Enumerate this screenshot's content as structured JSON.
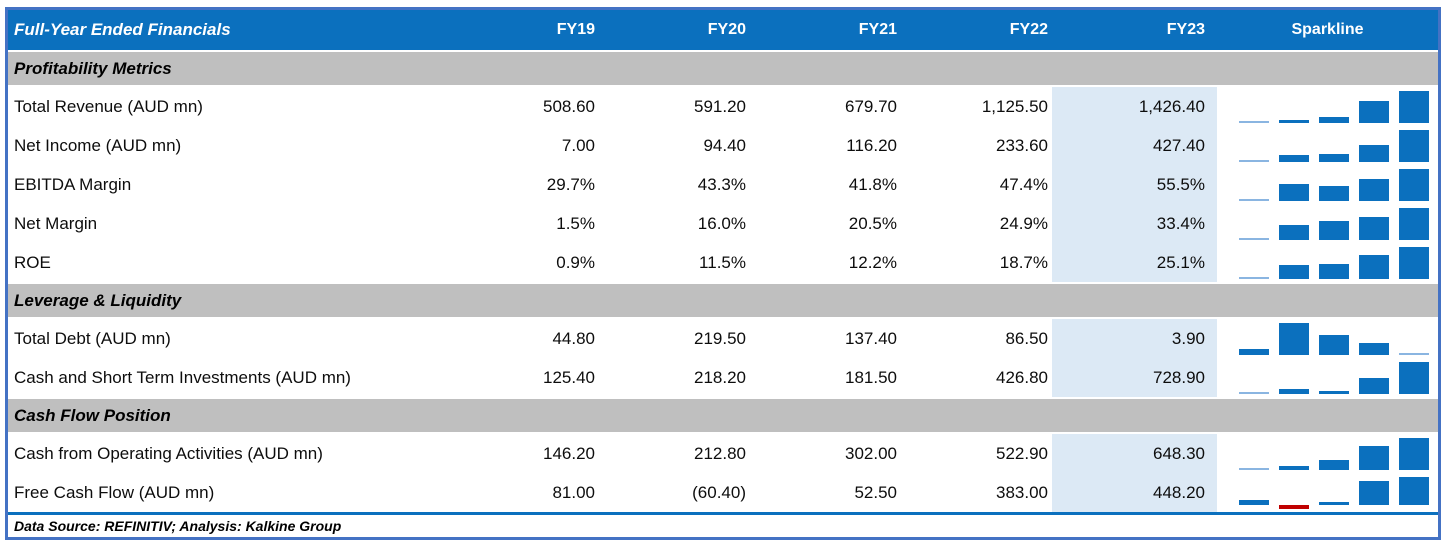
{
  "colors": {
    "header_bg": "#0B70BE",
    "section_bg": "#BFBFBF",
    "highlight_bg": "#DCE9F5",
    "frame_border": "#4472C4",
    "spark_pos": "#0B70BE",
    "spark_neg": "#C00000",
    "spark_min": "#8AB5E1"
  },
  "footer": {
    "text": "Data Source: REFINITIV; Analysis: Kalkine Group"
  },
  "chart_data": {
    "type": "table",
    "title": "Full-Year Ended Financials",
    "columns": [
      "FY19",
      "FY20",
      "FY21",
      "FY22",
      "FY23"
    ],
    "sparkline_column": "Sparkline",
    "sparkline_type": "bar",
    "highlighted_column": "FY23",
    "sections": [
      {
        "title": "Profitability Metrics",
        "rows": [
          {
            "label": "Total Revenue (AUD mn)",
            "values": [
              508.6,
              591.2,
              679.7,
              1125.5,
              1426.4
            ],
            "display": [
              "508.60",
              "591.20",
              "679.70",
              "1,125.50",
              "1,426.40"
            ]
          },
          {
            "label": "Net Income (AUD mn)",
            "values": [
              7.0,
              94.4,
              116.2,
              233.6,
              427.4
            ],
            "display": [
              "7.00",
              "94.40",
              "116.20",
              "233.60",
              "427.40"
            ]
          },
          {
            "label": "EBITDA Margin",
            "values": [
              29.7,
              43.3,
              41.8,
              47.4,
              55.5
            ],
            "display": [
              "29.7%",
              "43.3%",
              "41.8%",
              "47.4%",
              "55.5%"
            ]
          },
          {
            "label": "Net Margin",
            "values": [
              1.5,
              16.0,
              20.5,
              24.9,
              33.4
            ],
            "display": [
              "1.5%",
              "16.0%",
              "20.5%",
              "24.9%",
              "33.4%"
            ]
          },
          {
            "label": "ROE",
            "values": [
              0.9,
              11.5,
              12.2,
              18.7,
              25.1
            ],
            "display": [
              "0.9%",
              "11.5%",
              "12.2%",
              "18.7%",
              "25.1%"
            ]
          }
        ]
      },
      {
        "title": "Leverage & Liquidity",
        "rows": [
          {
            "label": "Total Debt (AUD mn)",
            "values": [
              44.8,
              219.5,
              137.4,
              86.5,
              3.9
            ],
            "display": [
              "44.80",
              "219.50",
              "137.40",
              "86.50",
              "3.90"
            ]
          },
          {
            "label": "Cash and Short Term Investments (AUD mn)",
            "values": [
              125.4,
              218.2,
              181.5,
              426.8,
              728.9
            ],
            "display": [
              "125.40",
              "218.20",
              "181.50",
              "426.80",
              "728.90"
            ]
          }
        ]
      },
      {
        "title": "Cash Flow Position",
        "rows": [
          {
            "label": "Cash from Operating Activities (AUD mn)",
            "values": [
              146.2,
              212.8,
              302.0,
              522.9,
              648.3
            ],
            "display": [
              "146.20",
              "212.80",
              "302.00",
              "522.90",
              "648.30"
            ]
          },
          {
            "label": "Free Cash Flow (AUD mn)",
            "values": [
              81.0,
              -60.4,
              52.5,
              383.0,
              448.2
            ],
            "display": [
              "81.00",
              "(60.40)",
              "52.50",
              "383.00",
              "448.20"
            ]
          }
        ]
      }
    ]
  }
}
